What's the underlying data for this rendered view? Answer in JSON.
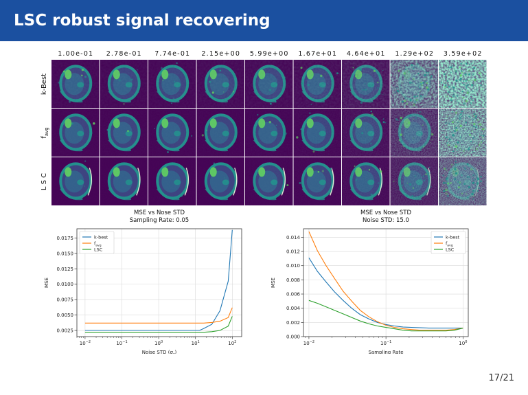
{
  "slide": {
    "title": "LSC robust signal recovering",
    "page": "17/21"
  },
  "grid": {
    "column_labels": [
      "1.00e-01",
      "2.78e-01",
      "7.74e-01",
      "2.15e+00",
      "5.99e+00",
      "1.67e+01",
      "4.64e+01",
      "1.29e+02",
      "3.59e+02"
    ],
    "row_labels": [
      {
        "main": "k-Best",
        "sub": ""
      },
      {
        "main": "f",
        "sub": "avg"
      },
      {
        "main": "L S C",
        "sub": ""
      }
    ],
    "noise_level": [
      [
        0.05,
        0.05,
        0.05,
        0.06,
        0.07,
        0.09,
        0.15,
        0.65,
        0.95
      ],
      [
        0.03,
        0.03,
        0.03,
        0.03,
        0.04,
        0.05,
        0.1,
        0.3,
        0.8
      ],
      [
        0.02,
        0.02,
        0.02,
        0.02,
        0.03,
        0.04,
        0.07,
        0.2,
        0.55
      ]
    ],
    "colors": {
      "background": "#440154",
      "mid": "#21918c",
      "bright": "#5ec962",
      "hot": "#fde725",
      "dark": "#3b528b"
    }
  },
  "chart_data": [
    {
      "type": "line",
      "title": "MSE vs Nose STD",
      "subtitle": "Sampling Rate: 0.05",
      "xlabel": "Noise STD (σ",
      "xlabel_sub": "z",
      "xlabel_end": ")",
      "ylabel": "MSE",
      "xscale": "log",
      "xlim": [
        0.006,
        180
      ],
      "ylim": [
        0.0015,
        0.019
      ],
      "xticks": [
        0.01,
        0.1,
        1,
        10,
        100
      ],
      "xtick_labels": [
        {
          "b": "10",
          "e": "−2"
        },
        {
          "b": "10",
          "e": "−1"
        },
        {
          "b": "10",
          "e": "0"
        },
        {
          "b": "10",
          "e": "1"
        },
        {
          "b": "10",
          "e": "2"
        }
      ],
      "yticks": [
        0.0025,
        0.005,
        0.0075,
        0.01,
        0.0125,
        0.015,
        0.0175
      ],
      "ytick_labels": [
        "0.0025",
        "0.0050",
        "0.0075",
        "0.0100",
        "0.0125",
        "0.0150",
        "0.0175"
      ],
      "grid": true,
      "legend_position": "upper-left",
      "x": [
        0.01,
        0.0278,
        0.0774,
        0.215,
        0.599,
        1.67,
        4.64,
        12.9,
        16.7,
        27.8,
        46.4,
        77.4,
        100
      ],
      "series": [
        {
          "name": "k-best",
          "color": "#1f77b4",
          "values": [
            0.0025,
            0.0025,
            0.0025,
            0.0025,
            0.0025,
            0.0025,
            0.0025,
            0.0025,
            0.0028,
            0.0035,
            0.0057,
            0.0105,
            0.0188
          ]
        },
        {
          "name": "f",
          "name_sub": "avg",
          "color": "#ff7f0e",
          "values": [
            0.0037,
            0.0037,
            0.0037,
            0.0037,
            0.0037,
            0.0037,
            0.0037,
            0.0037,
            0.0037,
            0.0038,
            0.004,
            0.0046,
            0.0062
          ]
        },
        {
          "name": "LSC",
          "color": "#2ca02c",
          "values": [
            0.0022,
            0.0022,
            0.0022,
            0.0022,
            0.0022,
            0.0022,
            0.0022,
            0.0022,
            0.0022,
            0.0023,
            0.0025,
            0.0032,
            0.0048
          ]
        }
      ]
    },
    {
      "type": "line",
      "title": "MSE vs Nose STD",
      "subtitle": "Noise STD: 15.0",
      "xlabel": "Sampling Rate",
      "ylabel": "MSE",
      "xscale": "log",
      "xlim": [
        0.0085,
        1.17
      ],
      "ylim": [
        0,
        0.0152
      ],
      "xticks": [
        0.01,
        0.1,
        1
      ],
      "xtick_labels": [
        {
          "b": "10",
          "e": "−2"
        },
        {
          "b": "10",
          "e": "−1"
        },
        {
          "b": "10",
          "e": "0"
        }
      ],
      "yticks": [
        0,
        0.002,
        0.004,
        0.006,
        0.008,
        0.01,
        0.012,
        0.014
      ],
      "ytick_labels": [
        "0.000",
        "0.002",
        "0.004",
        "0.006",
        "0.008",
        "0.010",
        "0.012",
        "0.014"
      ],
      "grid": true,
      "legend_position": "upper-right",
      "x": [
        0.01,
        0.0129,
        0.0167,
        0.0215,
        0.0278,
        0.0359,
        0.0464,
        0.0599,
        0.0774,
        0.1,
        0.129,
        0.167,
        0.215,
        0.278,
        0.359,
        0.464,
        0.599,
        0.774,
        1.0
      ],
      "series": [
        {
          "name": "k-best",
          "color": "#1f77b4",
          "values": [
            0.0111,
            0.0092,
            0.0077,
            0.0063,
            0.0051,
            0.004,
            0.0031,
            0.0025,
            0.002,
            0.0017,
            0.0015,
            0.00135,
            0.0013,
            0.00125,
            0.0012,
            0.0012,
            0.0012,
            0.0012,
            0.0012
          ]
        },
        {
          "name": "f",
          "name_sub": "avg",
          "color": "#ff7f0e",
          "values": [
            0.0148,
            0.0121,
            0.01,
            0.0082,
            0.0064,
            0.005,
            0.0037,
            0.0028,
            0.0021,
            0.0016,
            0.0013,
            0.0011,
            0.001,
            0.0009,
            0.0009,
            0.0009,
            0.0009,
            0.001,
            0.0012
          ]
        },
        {
          "name": "LSC",
          "color": "#2ca02c",
          "values": [
            0.0051,
            0.0047,
            0.0042,
            0.0037,
            0.0032,
            0.0027,
            0.0022,
            0.0018,
            0.0015,
            0.0013,
            0.0011,
            0.0009,
            0.0008,
            0.0008,
            0.0008,
            0.0008,
            0.0008,
            0.0009,
            0.0012
          ]
        }
      ]
    }
  ]
}
